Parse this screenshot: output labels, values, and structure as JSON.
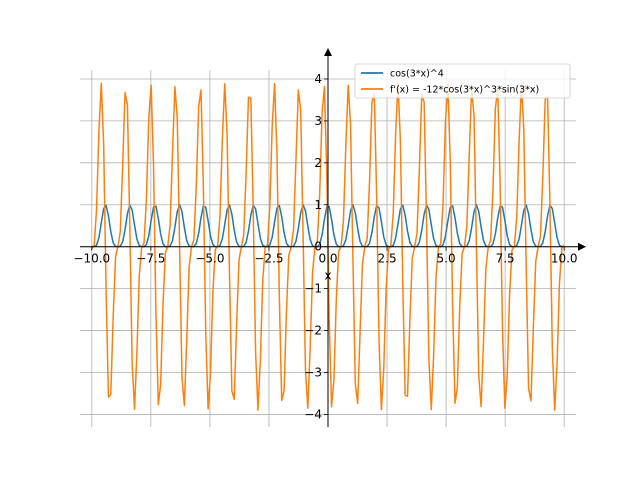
{
  "chart_data": {
    "type": "line",
    "title": "",
    "xlabel": "x",
    "ylabel": "",
    "xlim": [
      -10.5,
      10.5
    ],
    "ylim": [
      -4.3,
      4.5
    ],
    "grid": true,
    "legend_position": "top-right",
    "x_ticks": [
      -10.0,
      -7.5,
      -5.0,
      -2.5,
      0.0,
      2.5,
      5.0,
      7.5,
      10.0
    ],
    "x_tick_labels": [
      "−10.0",
      "−7.5",
      "−5.0",
      "−2.5",
      "0.0",
      "2.5",
      "5.0",
      "7.5",
      "10.0"
    ],
    "y_ticks": [
      -4,
      -3,
      -2,
      -1,
      0,
      1,
      2,
      3,
      4
    ],
    "y_tick_labels": [
      "−4",
      "−3",
      "−2",
      "−1",
      "0",
      "1",
      "2",
      "3",
      "4"
    ],
    "series": [
      {
        "name": "cos(3*x)^4",
        "color": "#1f77b4",
        "x_range": [
          -10,
          10
        ],
        "sample_count": 200,
        "formula": "cos(3*x)^4"
      },
      {
        "name": "f'(x) = -12*cos(3*x)^3*sin(3*x)",
        "color": "#ff7f0e",
        "x_range": [
          -10,
          10
        ],
        "sample_count": 200,
        "formula": "-12*cos(3*x)^3*sin(3*x)"
      }
    ]
  }
}
